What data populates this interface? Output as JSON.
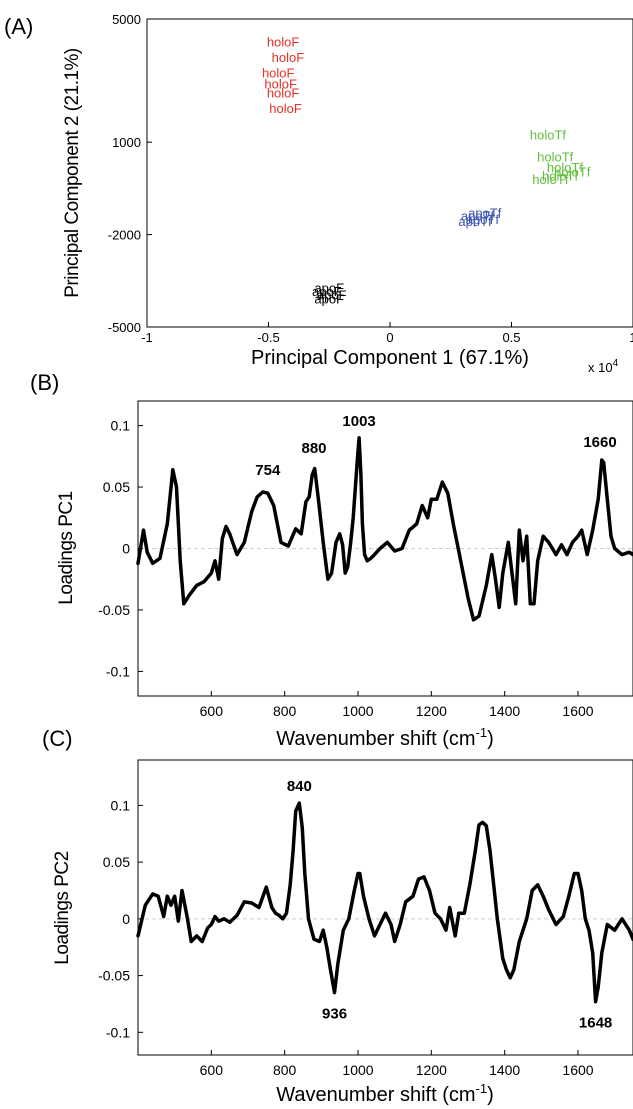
{
  "panels": {
    "a_letter": "(A)",
    "b_letter": "(B)",
    "c_letter": "(C)"
  },
  "colors": {
    "holoF": "#e8312a",
    "holoTf": "#5fbf3a",
    "apoTf": "#3d55b3",
    "apoF": "#000000",
    "loading_line": "#000000"
  },
  "chart_data": [
    {
      "type": "scatter",
      "xlabel": "Principal Component 1 (67.1%)",
      "ylabel": "Principal Component 2 (21.1%)",
      "x_multiplier": "x 10",
      "x_multiplier_exp": "4",
      "xlim": [
        -1,
        1
      ],
      "ylim": [
        -5000,
        5000
      ],
      "xticks": [
        -1,
        -0.5,
        0,
        0.5,
        1
      ],
      "xtick_labels": [
        "-1",
        "-0.5",
        "0",
        "0.5",
        "1"
      ],
      "yticks": [
        -5000,
        -2000,
        1000,
        5000
      ],
      "ytick_labels": [
        "-5000",
        "-2000",
        "1000",
        "5000"
      ],
      "series": [
        {
          "name": "holoF",
          "points": [
            [
              -0.44,
              4100
            ],
            [
              -0.42,
              3600
            ],
            [
              -0.46,
              3100
            ],
            [
              -0.45,
              2750
            ],
            [
              -0.44,
              2450
            ],
            [
              -0.43,
              1950
            ]
          ]
        },
        {
          "name": "holoTf",
          "points": [
            [
              0.65,
              1080
            ],
            [
              0.68,
              370
            ],
            [
              0.72,
              40
            ],
            [
              0.75,
              -110
            ],
            [
              0.7,
              -250
            ],
            [
              0.66,
              -350
            ]
          ]
        },
        {
          "name": "apoTf",
          "points": [
            [
              0.39,
              -1450
            ],
            [
              0.36,
              -1550
            ],
            [
              0.38,
              -1650
            ],
            [
              0.35,
              -1720
            ]
          ]
        },
        {
          "name": "apoF",
          "points": [
            [
              -0.25,
              -3880
            ],
            [
              -0.26,
              -4000
            ],
            [
              -0.24,
              -4100
            ],
            [
              -0.25,
              -4230
            ]
          ]
        }
      ]
    },
    {
      "type": "line",
      "xlabel": "Wavenumber shift (cm",
      "xlabel_sup": "-1",
      "xlabel_end": ")",
      "ylabel": "Loadings PC1",
      "xlim": [
        400,
        1750
      ],
      "ylim": [
        -0.12,
        0.12
      ],
      "xticks": [
        600,
        800,
        1000,
        1200,
        1400,
        1600
      ],
      "yticks": [
        -0.1,
        -0.05,
        0,
        0.05,
        0.1
      ],
      "ytick_labels": [
        "-0.1",
        "-0.05",
        "0",
        "0.05",
        "0.1"
      ],
      "annotations": [
        {
          "x": 754,
          "y": 0.05,
          "text": "754"
        },
        {
          "x": 880,
          "y": 0.068,
          "text": "880"
        },
        {
          "x": 1003,
          "y": 0.09,
          "text": "1003"
        },
        {
          "x": 1660,
          "y": 0.073,
          "text": "1660"
        }
      ],
      "x": [
        400,
        415,
        425,
        440,
        460,
        480,
        495,
        505,
        515,
        525,
        540,
        560,
        580,
        600,
        610,
        620,
        630,
        640,
        650,
        670,
        690,
        710,
        725,
        740,
        754,
        770,
        790,
        810,
        830,
        845,
        858,
        867,
        875,
        882,
        892,
        905,
        918,
        928,
        940,
        950,
        958,
        965,
        972,
        980,
        987,
        993,
        999,
        1003,
        1008,
        1012,
        1018,
        1025,
        1035,
        1045,
        1060,
        1080,
        1100,
        1120,
        1140,
        1160,
        1175,
        1190,
        1200,
        1215,
        1230,
        1245,
        1260,
        1280,
        1300,
        1315,
        1330,
        1350,
        1365,
        1375,
        1385,
        1395,
        1410,
        1420,
        1430,
        1440,
        1450,
        1460,
        1470,
        1480,
        1490,
        1505,
        1520,
        1540,
        1555,
        1570,
        1585,
        1600,
        1610,
        1625,
        1640,
        1655,
        1665,
        1670,
        1680,
        1690,
        1700,
        1720,
        1740,
        1750
      ],
      "y": [
        -0.012,
        0.015,
        -0.003,
        -0.012,
        -0.008,
        0.02,
        0.064,
        0.05,
        -0.01,
        -0.045,
        -0.038,
        -0.03,
        -0.027,
        -0.02,
        -0.01,
        -0.025,
        0.008,
        0.018,
        0.012,
        -0.005,
        0.005,
        0.03,
        0.042,
        0.046,
        0.045,
        0.035,
        0.005,
        0.002,
        0.016,
        0.012,
        0.038,
        0.042,
        0.06,
        0.065,
        0.04,
        0.005,
        -0.025,
        -0.02,
        0.005,
        0.012,
        0.003,
        -0.02,
        -0.015,
        0.005,
        0.025,
        0.05,
        0.075,
        0.09,
        0.06,
        0.02,
        -0.005,
        -0.01,
        -0.008,
        -0.005,
        0.0,
        0.005,
        -0.002,
        0.0,
        0.015,
        0.02,
        0.035,
        0.025,
        0.04,
        0.04,
        0.054,
        0.045,
        0.02,
        -0.01,
        -0.04,
        -0.058,
        -0.055,
        -0.03,
        -0.005,
        -0.025,
        -0.048,
        -0.02,
        0.005,
        -0.02,
        -0.045,
        0.015,
        -0.01,
        0.01,
        -0.045,
        -0.045,
        -0.01,
        0.01,
        0.005,
        -0.005,
        0.003,
        -0.005,
        0.005,
        0.01,
        0.015,
        -0.005,
        0.015,
        0.04,
        0.072,
        0.07,
        0.04,
        0.01,
        0.0,
        -0.005,
        -0.003,
        -0.005
      ]
    },
    {
      "type": "line",
      "xlabel": "Wavenumber shift (cm",
      "xlabel_sup": "-1",
      "xlabel_end": ")",
      "ylabel": "Loadings PC2",
      "xlim": [
        400,
        1750
      ],
      "ylim": [
        -0.12,
        0.14
      ],
      "xticks": [
        600,
        800,
        1000,
        1200,
        1400,
        1600
      ],
      "yticks": [
        -0.1,
        -0.05,
        0,
        0.05,
        0.1
      ],
      "ytick_labels": [
        "-0.1",
        "-0.05",
        "0",
        "0.05",
        "0.1"
      ],
      "annotations": [
        {
          "x": 840,
          "y": 0.102,
          "text": "840",
          "pos": "above"
        },
        {
          "x": 936,
          "y": -0.065,
          "text": "936",
          "pos": "below"
        },
        {
          "x": 1648,
          "y": -0.073,
          "text": "1648",
          "pos": "below"
        }
      ],
      "x": [
        400,
        420,
        440,
        455,
        470,
        480,
        490,
        500,
        510,
        520,
        535,
        545,
        560,
        575,
        590,
        600,
        610,
        620,
        635,
        650,
        670,
        690,
        710,
        730,
        750,
        765,
        775,
        785,
        795,
        805,
        815,
        823,
        830,
        840,
        848,
        855,
        865,
        880,
        895,
        905,
        915,
        925,
        936,
        945,
        960,
        975,
        990,
        1000,
        1005,
        1015,
        1030,
        1045,
        1060,
        1075,
        1090,
        1100,
        1115,
        1130,
        1150,
        1165,
        1180,
        1195,
        1210,
        1225,
        1240,
        1250,
        1265,
        1275,
        1290,
        1305,
        1320,
        1330,
        1340,
        1350,
        1360,
        1370,
        1380,
        1395,
        1405,
        1415,
        1425,
        1440,
        1460,
        1475,
        1490,
        1505,
        1520,
        1540,
        1560,
        1575,
        1590,
        1600,
        1610,
        1620,
        1630,
        1640,
        1648,
        1655,
        1665,
        1680,
        1700,
        1720,
        1740,
        1750
      ],
      "y": [
        -0.015,
        0.012,
        0.022,
        0.02,
        0.002,
        0.02,
        0.012,
        0.02,
        -0.002,
        0.025,
        0.0,
        -0.02,
        -0.015,
        -0.02,
        -0.008,
        -0.005,
        0.002,
        -0.002,
        0.0,
        -0.003,
        0.003,
        0.015,
        0.014,
        0.01,
        0.028,
        0.01,
        0.005,
        0.003,
        0.0,
        0.005,
        0.03,
        0.06,
        0.095,
        0.102,
        0.08,
        0.04,
        0.0,
        -0.018,
        -0.02,
        -0.01,
        -0.025,
        -0.045,
        -0.065,
        -0.04,
        -0.01,
        0.0,
        0.025,
        0.04,
        0.04,
        0.02,
        0.0,
        -0.015,
        -0.005,
        0.005,
        -0.005,
        -0.02,
        -0.005,
        0.015,
        0.02,
        0.035,
        0.037,
        0.025,
        0.005,
        0.0,
        -0.01,
        0.01,
        -0.015,
        0.005,
        0.005,
        0.03,
        0.06,
        0.083,
        0.085,
        0.082,
        0.06,
        0.03,
        0.0,
        -0.035,
        -0.045,
        -0.052,
        -0.045,
        -0.02,
        0.0,
        0.025,
        0.03,
        0.02,
        0.008,
        -0.005,
        0.002,
        0.02,
        0.04,
        0.04,
        0.025,
        0.0,
        -0.01,
        -0.03,
        -0.073,
        -0.06,
        -0.03,
        -0.005,
        -0.01,
        0.0,
        -0.01,
        -0.018
      ]
    }
  ]
}
